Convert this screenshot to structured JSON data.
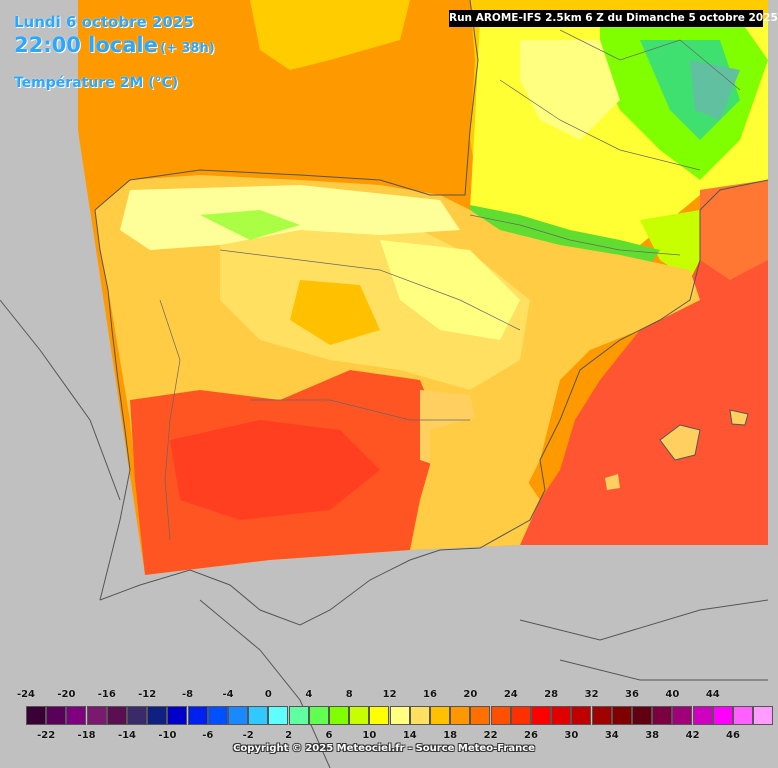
{
  "header": {
    "date_line": "Lundi 6 octobre 2025",
    "time_line": "22:00 locale",
    "lead_time": "(+ 38h)",
    "parameter": "Température 2M (°C)"
  },
  "run_banner": "Run AROME-IFS 2.5km 6 Z du Dimanche 5 octobre 2025",
  "legend": {
    "top_labels": [
      "-24",
      "-20",
      "-16",
      "-12",
      "-8",
      "-4",
      "0",
      "4",
      "8",
      "12",
      "16",
      "20",
      "24",
      "28",
      "32",
      "36",
      "40",
      "44"
    ],
    "bottom_labels": [
      "-22",
      "-18",
      "-14",
      "-10",
      "-6",
      "-2",
      "2",
      "6",
      "10",
      "14",
      "18",
      "22",
      "26",
      "30",
      "34",
      "38",
      "42",
      "46"
    ],
    "colors": [
      "#3a0035",
      "#5a005a",
      "#7f007f",
      "#7a1a6e",
      "#5a1050",
      "#3a2a6a",
      "#102080",
      "#0000c8",
      "#0020f0",
      "#0050ff",
      "#1a88ff",
      "#30c8ff",
      "#60ffff",
      "#60ffa0",
      "#60ff50",
      "#80ff00",
      "#c8ff00",
      "#ffff00",
      "#ffff80",
      "#ffe060",
      "#ffc000",
      "#ff9800",
      "#ff7000",
      "#ff5000",
      "#ff3000",
      "#ff0000",
      "#e00000",
      "#c00000",
      "#a00000",
      "#800000",
      "#600010",
      "#7a0040",
      "#a00078",
      "#d000c0",
      "#ff00ff",
      "#ff60ff",
      "#ff9cff"
    ]
  },
  "copyright": "Copyright © 2025 Meteociel.fr - Source Meteo-France"
}
